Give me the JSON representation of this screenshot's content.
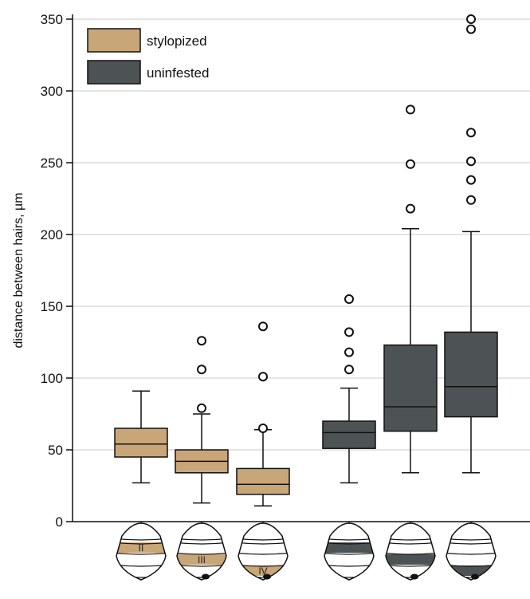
{
  "chart_data": {
    "type": "box",
    "ylabel": "distance between hairs, µm",
    "ylim": [
      0,
      350
    ],
    "yticks": [
      0,
      50,
      100,
      150,
      200,
      250,
      300,
      350
    ],
    "grid": true,
    "legend_position": "top-left",
    "colors": {
      "stylopized": "#c9a678",
      "uninfested": "#4d5355",
      "outline": "#111111"
    },
    "series": [
      {
        "name": "stylopized",
        "color": "#c9a678"
      },
      {
        "name": "uninfested",
        "color": "#4d5355"
      }
    ],
    "boxes": [
      {
        "series": "stylopized",
        "segment": "II",
        "segment_index": 2,
        "min": 27,
        "q1": 45,
        "median": 54,
        "q3": 65,
        "max": 91,
        "outliers": []
      },
      {
        "series": "stylopized",
        "segment": "III",
        "segment_index": 3,
        "min": 13,
        "q1": 34,
        "median": 42,
        "q3": 50,
        "max": 75,
        "outliers": [
          79,
          106,
          126
        ]
      },
      {
        "series": "stylopized",
        "segment": "IV",
        "segment_index": 4,
        "min": 11,
        "q1": 19,
        "median": 26,
        "q3": 37,
        "max": 64,
        "outliers": [
          65,
          101,
          136
        ]
      },
      {
        "series": "uninfested",
        "segment": "",
        "segment_index": 2,
        "min": 27,
        "q1": 51,
        "median": 62,
        "q3": 70,
        "max": 93,
        "outliers": [
          106,
          118,
          132,
          155
        ]
      },
      {
        "series": "uninfested",
        "segment": "",
        "segment_index": 3,
        "min": 34,
        "q1": 63,
        "median": 80,
        "q3": 123,
        "max": 204,
        "outliers": [
          218,
          249,
          287
        ]
      },
      {
        "series": "uninfested",
        "segment": "",
        "segment_index": 4,
        "min": 34,
        "q1": 73,
        "median": 94,
        "q3": 132,
        "max": 202,
        "outliers": [
          224,
          238,
          251,
          271,
          343,
          350
        ]
      }
    ]
  }
}
